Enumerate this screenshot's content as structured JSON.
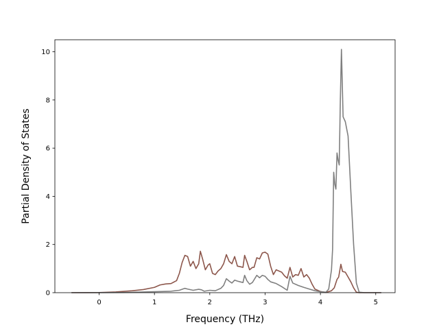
{
  "chart_data": {
    "type": "line",
    "title": "",
    "xlabel": "Frequency (THz)",
    "ylabel": "Partial Density of States",
    "xlim": [
      -0.8,
      5.35
    ],
    "ylim": [
      0,
      10.5
    ],
    "xticks": [
      0,
      1,
      2,
      3,
      4,
      5
    ],
    "yticks": [
      0,
      2,
      4,
      6,
      8,
      10
    ],
    "xtick_labels": [
      "0",
      "1",
      "2",
      "3",
      "4",
      "5"
    ],
    "ytick_labels": [
      "0",
      "2",
      "4",
      "6",
      "8",
      "10"
    ],
    "grid": false,
    "legend": "none",
    "series": [
      {
        "color": "#8c564b",
        "points": [
          [
            -0.5,
            0
          ],
          [
            0,
            0.005
          ],
          [
            0.3,
            0.03
          ],
          [
            0.6,
            0.08
          ],
          [
            0.8,
            0.13
          ],
          [
            1.0,
            0.22
          ],
          [
            1.1,
            0.32
          ],
          [
            1.2,
            0.36
          ],
          [
            1.3,
            0.38
          ],
          [
            1.4,
            0.5
          ],
          [
            1.45,
            0.8
          ],
          [
            1.5,
            1.25
          ],
          [
            1.55,
            1.55
          ],
          [
            1.6,
            1.5
          ],
          [
            1.65,
            1.1
          ],
          [
            1.7,
            1.3
          ],
          [
            1.75,
            1.0
          ],
          [
            1.8,
            1.2
          ],
          [
            1.83,
            1.72
          ],
          [
            1.87,
            1.4
          ],
          [
            1.92,
            0.95
          ],
          [
            1.97,
            1.15
          ],
          [
            2.0,
            1.2
          ],
          [
            2.05,
            0.8
          ],
          [
            2.1,
            0.75
          ],
          [
            2.15,
            0.9
          ],
          [
            2.2,
            1.0
          ],
          [
            2.25,
            1.2
          ],
          [
            2.3,
            1.58
          ],
          [
            2.35,
            1.3
          ],
          [
            2.4,
            1.2
          ],
          [
            2.45,
            1.5
          ],
          [
            2.5,
            1.1
          ],
          [
            2.55,
            1.08
          ],
          [
            2.6,
            1.05
          ],
          [
            2.63,
            1.55
          ],
          [
            2.67,
            1.3
          ],
          [
            2.72,
            0.95
          ],
          [
            2.77,
            1.05
          ],
          [
            2.8,
            1.05
          ],
          [
            2.85,
            1.45
          ],
          [
            2.9,
            1.4
          ],
          [
            2.95,
            1.65
          ],
          [
            3.0,
            1.68
          ],
          [
            3.05,
            1.6
          ],
          [
            3.1,
            1.1
          ],
          [
            3.15,
            0.75
          ],
          [
            3.2,
            0.95
          ],
          [
            3.25,
            0.9
          ],
          [
            3.3,
            0.85
          ],
          [
            3.35,
            0.7
          ],
          [
            3.4,
            0.6
          ],
          [
            3.45,
            1.05
          ],
          [
            3.5,
            0.65
          ],
          [
            3.55,
            0.75
          ],
          [
            3.6,
            0.72
          ],
          [
            3.65,
            1.0
          ],
          [
            3.7,
            0.65
          ],
          [
            3.75,
            0.75
          ],
          [
            3.8,
            0.6
          ],
          [
            3.85,
            0.35
          ],
          [
            3.9,
            0.15
          ],
          [
            4.0,
            0.05
          ],
          [
            4.1,
            0.01
          ],
          [
            4.2,
            0.08
          ],
          [
            4.25,
            0.2
          ],
          [
            4.3,
            0.55
          ],
          [
            4.33,
            0.65
          ],
          [
            4.37,
            1.18
          ],
          [
            4.4,
            0.88
          ],
          [
            4.45,
            0.85
          ],
          [
            4.5,
            0.65
          ],
          [
            4.55,
            0.45
          ],
          [
            4.6,
            0.2
          ],
          [
            4.65,
            0.02
          ],
          [
            4.7,
            0
          ],
          [
            5.1,
            0
          ]
        ]
      },
      {
        "color": "#7f7f7f",
        "points": [
          [
            -0.5,
            0
          ],
          [
            0,
            0.002
          ],
          [
            0.5,
            0.01
          ],
          [
            1.0,
            0.04
          ],
          [
            1.3,
            0.06
          ],
          [
            1.45,
            0.1
          ],
          [
            1.55,
            0.18
          ],
          [
            1.6,
            0.15
          ],
          [
            1.7,
            0.1
          ],
          [
            1.8,
            0.14
          ],
          [
            1.85,
            0.12
          ],
          [
            1.9,
            0.06
          ],
          [
            2.0,
            0.1
          ],
          [
            2.1,
            0.08
          ],
          [
            2.2,
            0.18
          ],
          [
            2.25,
            0.3
          ],
          [
            2.3,
            0.58
          ],
          [
            2.35,
            0.48
          ],
          [
            2.4,
            0.4
          ],
          [
            2.45,
            0.52
          ],
          [
            2.5,
            0.48
          ],
          [
            2.55,
            0.45
          ],
          [
            2.6,
            0.42
          ],
          [
            2.63,
            0.72
          ],
          [
            2.67,
            0.5
          ],
          [
            2.72,
            0.35
          ],
          [
            2.77,
            0.42
          ],
          [
            2.85,
            0.72
          ],
          [
            2.9,
            0.62
          ],
          [
            2.95,
            0.72
          ],
          [
            3.0,
            0.68
          ],
          [
            3.05,
            0.55
          ],
          [
            3.1,
            0.45
          ],
          [
            3.2,
            0.38
          ],
          [
            3.3,
            0.25
          ],
          [
            3.4,
            0.1
          ],
          [
            3.45,
            0.68
          ],
          [
            3.5,
            0.4
          ],
          [
            3.6,
            0.3
          ],
          [
            3.7,
            0.22
          ],
          [
            3.8,
            0.15
          ],
          [
            3.9,
            0.08
          ],
          [
            4.0,
            0.04
          ],
          [
            4.1,
            0.02
          ],
          [
            4.15,
            0.15
          ],
          [
            4.2,
            0.95
          ],
          [
            4.22,
            1.8
          ],
          [
            4.24,
            5.0
          ],
          [
            4.26,
            4.5
          ],
          [
            4.28,
            4.3
          ],
          [
            4.3,
            5.8
          ],
          [
            4.32,
            5.5
          ],
          [
            4.34,
            5.3
          ],
          [
            4.36,
            8.0
          ],
          [
            4.38,
            10.1
          ],
          [
            4.41,
            7.3
          ],
          [
            4.45,
            7.1
          ],
          [
            4.5,
            6.5
          ],
          [
            4.55,
            4.2
          ],
          [
            4.6,
            2.0
          ],
          [
            4.65,
            0.4
          ],
          [
            4.7,
            0.02
          ],
          [
            4.8,
            0
          ],
          [
            5.1,
            0
          ]
        ]
      }
    ]
  }
}
